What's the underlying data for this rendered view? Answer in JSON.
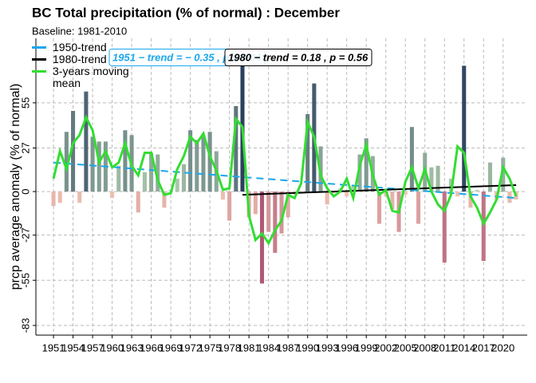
{
  "chart_data": {
    "type": "bar",
    "title": "BC Total precipitation (% of normal) : December",
    "subtitle": "Baseline: 1981-2010",
    "y_label": "prcp average anomaly (% of normal)",
    "x": [
      1951,
      1952,
      1953,
      1954,
      1955,
      1956,
      1957,
      1958,
      1959,
      1960,
      1961,
      1962,
      1963,
      1964,
      1965,
      1966,
      1967,
      1968,
      1969,
      1970,
      1971,
      1972,
      1973,
      1974,
      1975,
      1976,
      1977,
      1978,
      1979,
      1980,
      1981,
      1982,
      1983,
      1984,
      1985,
      1986,
      1987,
      1988,
      1989,
      1990,
      1991,
      1992,
      1993,
      1994,
      1995,
      1996,
      1997,
      1998,
      1999,
      2000,
      2001,
      2002,
      2003,
      2004,
      2005,
      2006,
      2007,
      2008,
      2009,
      2010,
      2011,
      2012,
      2013,
      2014,
      2015,
      2016,
      2017,
      2018,
      2019,
      2020,
      2021,
      2022
    ],
    "values": [
      -9,
      -7,
      37,
      50,
      -7,
      62,
      34,
      31,
      31,
      -4,
      16,
      38,
      35,
      -13,
      12,
      24,
      23,
      -10,
      1,
      8,
      17,
      38,
      32,
      34,
      37,
      25,
      -5,
      -18,
      53,
      82,
      -16,
      -14,
      -57,
      -25,
      -38,
      -26,
      -16,
      -2,
      -1,
      48,
      67,
      28,
      -8,
      -1,
      2,
      -3,
      4,
      23,
      33,
      22,
      -20,
      -3,
      -11,
      -25,
      -2,
      40,
      -20,
      24,
      15,
      16,
      -44,
      8,
      -3,
      78,
      -10,
      1,
      -43,
      18,
      -5,
      21,
      -7,
      -5
    ],
    "color_scale": {
      "negative_light": "#f2c9b6",
      "negative_strong": "#8a1a52",
      "positive_light": "#b9d6b4",
      "positive_strong": "#15284f"
    },
    "series": [
      {
        "name": "1950-trend",
        "color": "#1aa7ec",
        "dash": true,
        "x": [
          1951,
          2022
        ],
        "values": [
          18,
          -4
        ]
      },
      {
        "name": "1980-trend",
        "color": "#000000",
        "dash": false,
        "x": [
          1980,
          2022
        ],
        "values": [
          -2,
          4
        ]
      },
      {
        "name": "3-years moving mean",
        "color": "#33dd33",
        "dash": false,
        "values": [
          8,
          25,
          14,
          30,
          35,
          46,
          38,
          18,
          25,
          15,
          18,
          30,
          16,
          10,
          24,
          24,
          7,
          -2,
          -1,
          14,
          22,
          34,
          30,
          36,
          22,
          13,
          1,
          2,
          45,
          40,
          -15,
          -30,
          -26,
          -32,
          -24,
          -18,
          -2,
          -4,
          5,
          43,
          34,
          10,
          2,
          -3,
          0,
          8,
          -4,
          16,
          29,
          10,
          -2,
          1,
          -12,
          -13,
          6,
          15,
          2,
          14,
          0,
          -8,
          -12,
          -2,
          28,
          24,
          -3,
          -10,
          -20,
          -13,
          -5,
          15,
          8,
          -3
        ]
      }
    ],
    "annotations": [
      {
        "text": "1951 − trend = − 0.35 , p = 0.04",
        "color": "#1aa7ec"
      },
      {
        "text": "1980 − trend = 0.18 , p = 0.56",
        "color": "#000000"
      }
    ],
    "xlim": [
      1948.3,
      2023.7
    ],
    "ylim": [
      -89,
      95
    ],
    "xticks": [
      1951,
      1954,
      1957,
      1960,
      1963,
      1966,
      1969,
      1972,
      1975,
      1978,
      1981,
      1984,
      1987,
      1990,
      1993,
      1996,
      1999,
      2002,
      2005,
      2008,
      2011,
      2014,
      2017,
      2020
    ],
    "yticks": [
      -83,
      -55,
      -27,
      0,
      27,
      55
    ],
    "grid": true,
    "legend": "top-left"
  }
}
